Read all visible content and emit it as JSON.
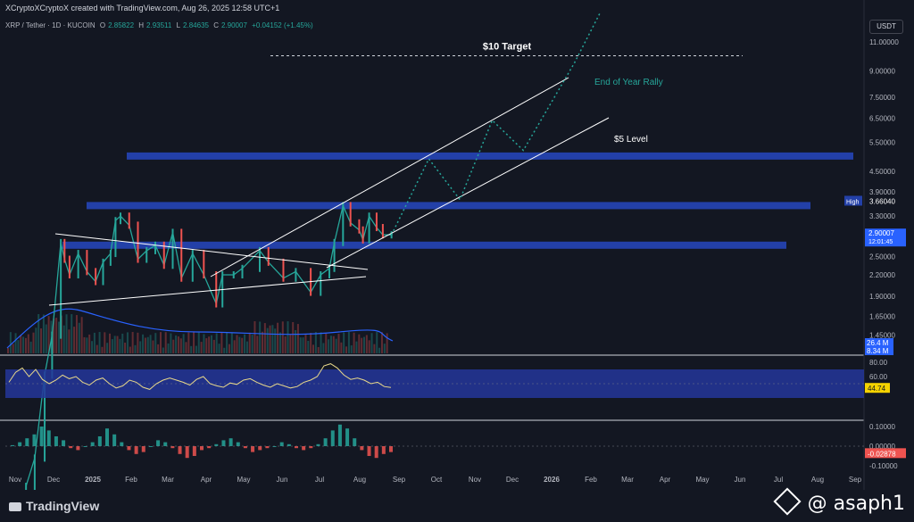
{
  "header": {
    "credit": "XCryptoXCryptoX created with TradingView.com, Aug 26, 2025 12:58 UTC+1",
    "symbol": "XRP / Tether · 1D · KUCOIN",
    "o_label": "O",
    "o_value": "2.85822",
    "h_label": "H",
    "h_value": "2.93511",
    "l_label": "L",
    "l_value": "2.84635",
    "c_label": "C",
    "c_value": "2.90007",
    "change": "+0.04152 (+1.45%)",
    "currency": "USDT"
  },
  "footer": {
    "brand": "TradingView",
    "watermark": "@ asaph1"
  },
  "colors": {
    "background": "#131722",
    "zone_blue": "#2340a8",
    "channel": "#ffffff",
    "projection": "#26a69a",
    "up_candle": "#26a69a",
    "down_candle": "#ef5350",
    "rsi_line": "#e8d88a",
    "rsi_band": "#24369a",
    "volume_ma": "#2962ff"
  },
  "chart_data": {
    "type": "line",
    "title": "XRP / Tether · 1D · KUCOIN",
    "price_axis": {
      "scale": "log",
      "ticks": [
        "11.00000",
        "9.00000",
        "7.50000",
        "6.50000",
        "5.50000",
        "4.50000",
        "3.90000",
        "3.30000",
        "2.50000",
        "2.20000",
        "1.90000",
        "1.65000",
        "1.45000"
      ],
      "labels": [
        {
          "name": "High",
          "value": "3.66040",
          "color": "#2340a8"
        },
        {
          "name": "Last",
          "value": "2.90007",
          "sub": "12:01:45",
          "color": "#2962ff"
        },
        {
          "name": "Volume",
          "value": "26.4 M",
          "color": "#2962ff"
        },
        {
          "name": "Volume MA",
          "value": "8.34 M",
          "color": "#2962ff"
        }
      ]
    },
    "time_axis": [
      "Nov",
      "Dec",
      "2025",
      "Feb",
      "Mar",
      "Apr",
      "May",
      "Jun",
      "Jul",
      "Aug",
      "Sep",
      "Oct",
      "Nov",
      "Dec",
      "2026",
      "Feb",
      "Mar",
      "Apr",
      "May",
      "Jun",
      "Jul",
      "Aug",
      "Sep"
    ],
    "price_series": {
      "name": "XRP",
      "points": [
        [
          "2024-11-05",
          0.51
        ],
        [
          "2024-11-12",
          0.62
        ],
        [
          "2024-11-20",
          1.1
        ],
        [
          "2024-11-26",
          1.45
        ],
        [
          "2024-12-03",
          2.75
        ],
        [
          "2024-12-06",
          2.45
        ],
        [
          "2024-12-10",
          2.2
        ],
        [
          "2024-12-17",
          2.55
        ],
        [
          "2024-12-24",
          2.25
        ],
        [
          "2024-12-31",
          2.1
        ],
        [
          "2025-01-06",
          2.4
        ],
        [
          "2025-01-12",
          2.55
        ],
        [
          "2025-01-16",
          3.2
        ],
        [
          "2025-01-20",
          3.3
        ],
        [
          "2025-01-27",
          3.1
        ],
        [
          "2025-02-03",
          2.45
        ],
        [
          "2025-02-10",
          2.6
        ],
        [
          "2025-02-17",
          2.7
        ],
        [
          "2025-02-24",
          2.35
        ],
        [
          "2025-03-03",
          2.95
        ],
        [
          "2025-03-10",
          2.15
        ],
        [
          "2025-03-19",
          2.55
        ],
        [
          "2025-03-28",
          2.2
        ],
        [
          "2025-04-07",
          1.8
        ],
        [
          "2025-04-12",
          2.2
        ],
        [
          "2025-04-21",
          2.2
        ],
        [
          "2025-04-28",
          2.3
        ],
        [
          "2025-05-12",
          2.6
        ],
        [
          "2025-05-19",
          2.4
        ],
        [
          "2025-05-31",
          2.15
        ],
        [
          "2025-06-10",
          2.25
        ],
        [
          "2025-06-22",
          1.95
        ],
        [
          "2025-06-30",
          2.2
        ],
        [
          "2025-07-07",
          2.3
        ],
        [
          "2025-07-11",
          2.75
        ],
        [
          "2025-07-18",
          3.55
        ],
        [
          "2025-07-24",
          3.15
        ],
        [
          "2025-07-31",
          3.0
        ],
        [
          "2025-08-03",
          2.8
        ],
        [
          "2025-08-08",
          3.3
        ],
        [
          "2025-08-14",
          3.05
        ],
        [
          "2025-08-19",
          2.9
        ],
        [
          "2025-08-26",
          2.9
        ]
      ]
    },
    "zones": [
      {
        "name": "$5 Level",
        "value": 5.0
      },
      {
        "name": "High zone",
        "value": 3.55
      },
      {
        "name": "Support zone",
        "value": 2.7
      }
    ],
    "annotations": [
      {
        "text": "$10 Target",
        "value": 10.0
      },
      {
        "text": "End of Year Rally"
      },
      {
        "text": "$5 Level",
        "value": 5.0
      }
    ],
    "projection": {
      "name": "End of Year Rally",
      "points": [
        [
          "2025-08-26",
          2.9
        ],
        [
          "2025-09-25",
          4.9
        ],
        [
          "2025-10-20",
          3.7
        ],
        [
          "2025-11-15",
          6.4
        ],
        [
          "2025-12-10",
          5.2
        ],
        [
          "2026-01-20",
          9.5
        ],
        [
          "2026-02-10",
          13.5
        ]
      ]
    },
    "rsi": {
      "ticks": [
        "80.00",
        "60.00"
      ],
      "value": "44.74",
      "band": [
        30,
        70
      ],
      "values": [
        52,
        66,
        72,
        60,
        70,
        56,
        50,
        55,
        62,
        57,
        60,
        52,
        48,
        55,
        58,
        50,
        44,
        47,
        55,
        52,
        45,
        42,
        50,
        55,
        58,
        55,
        52,
        48,
        56,
        60,
        50,
        47,
        45,
        51,
        49,
        55,
        57,
        52,
        48,
        45,
        50,
        47,
        44,
        46,
        52,
        55,
        60,
        75,
        78,
        72,
        62,
        56,
        58,
        55,
        50,
        52,
        46,
        44.74
      ]
    },
    "macd": {
      "ticks": [
        "0.10000",
        "0.00000",
        "-0.10000"
      ],
      "value": "-0.02878",
      "histogram": [
        0.005,
        0.02,
        0.04,
        0.06,
        0.1,
        0.08,
        0.05,
        0.03,
        -0.01,
        -0.02,
        0.0,
        0.02,
        0.05,
        0.09,
        0.06,
        0.02,
        -0.02,
        -0.04,
        -0.03,
        0.0,
        0.03,
        0.02,
        -0.01,
        -0.04,
        -0.06,
        -0.05,
        -0.02,
        -0.01,
        0.01,
        0.03,
        0.04,
        0.02,
        -0.01,
        -0.03,
        -0.02,
        -0.01,
        0.0,
        0.02,
        0.01,
        -0.01,
        -0.02,
        -0.01,
        0.01,
        0.04,
        0.08,
        0.11,
        0.09,
        0.04,
        -0.02,
        -0.05,
        -0.06,
        -0.04,
        -0.03
      ]
    }
  }
}
